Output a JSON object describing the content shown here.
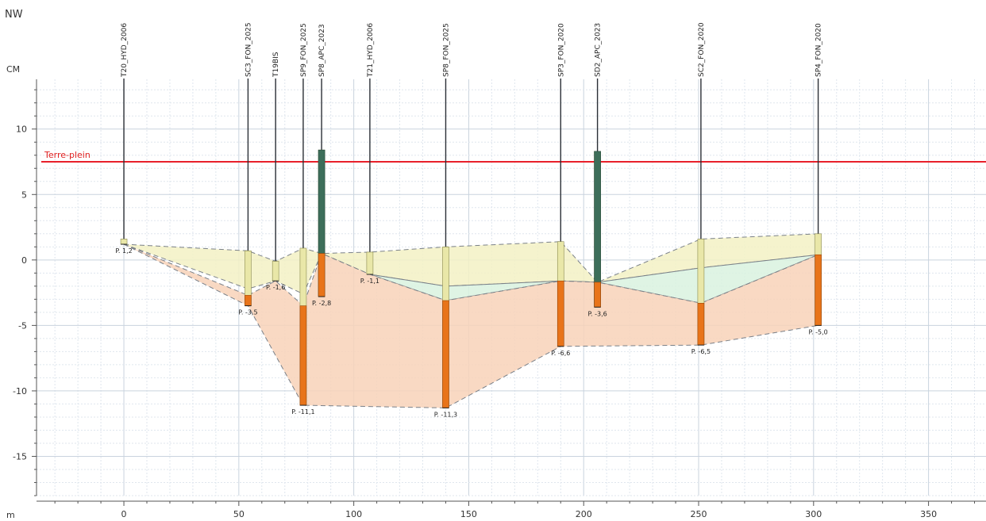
{
  "corner_label": "NW",
  "chart_data": {
    "type": "line",
    "ylabel": "CM",
    "xlabel": "m",
    "xlim": [
      -38,
      375
    ],
    "ylim": [
      -18,
      13.8
    ],
    "xticks": [
      0,
      50,
      100,
      150,
      200,
      250,
      300,
      350
    ],
    "yticks": [
      10,
      5,
      0,
      -5,
      -10,
      -15
    ],
    "ytick_labels": [
      "10",
      "5",
      "0",
      "-5",
      "-10",
      "-15"
    ],
    "reference_line": {
      "name": "Terre-plein",
      "y": 7.5,
      "color": "#e8202a"
    },
    "boreholes": [
      {
        "name": "T20_HYD_2006",
        "x": 0,
        "top": 1.6,
        "bottom": 1.2,
        "depth_label": "P. 1,2",
        "orange_top": null,
        "green_top": null
      },
      {
        "name": "SC3_FON_2025",
        "x": 54,
        "top": 0.7,
        "bottom": -3.5,
        "depth_label": "P. -3,5",
        "orange_top": -2.7,
        "green_top": null
      },
      {
        "name": "T19BIS",
        "x": 66,
        "top": -0.1,
        "bottom": -1.6,
        "depth_label": "P. -1,6",
        "orange_top": null,
        "green_top": null
      },
      {
        "name": "SP9_FON_2025",
        "x": 78,
        "top": 0.9,
        "bottom": -11.1,
        "depth_label": "P. -11,1",
        "orange_top": -3.5,
        "green_top": null
      },
      {
        "name": "SP8_APC_2023",
        "x": 86,
        "top": 8.4,
        "bottom": -2.8,
        "depth_label": "P. -2,8",
        "orange_top": 0.5,
        "green_top": 8.4
      },
      {
        "name": "T21_HYD_2006",
        "x": 107,
        "top": 0.6,
        "bottom": -1.1,
        "depth_label": "P. -1,1",
        "orange_top": null,
        "green_top": null
      },
      {
        "name": "SP8_FON_2025",
        "x": 140,
        "top": 1.0,
        "bottom": -11.3,
        "depth_label": "P. -11,3",
        "orange_top": -3.1,
        "green_top": null
      },
      {
        "name": "SP3_FON_2020",
        "x": 190,
        "top": 1.4,
        "bottom": -6.6,
        "depth_label": "P. -6,6",
        "orange_top": -1.6,
        "green_top": null
      },
      {
        "name": "SD2_APC_2023",
        "x": 206,
        "top": 8.3,
        "bottom": -3.6,
        "depth_label": "P. -3,6",
        "orange_top": -1.7,
        "green_top": 8.3
      },
      {
        "name": "SC2_FON_2020",
        "x": 251,
        "top": 1.6,
        "bottom": -6.5,
        "depth_label": "P. -6,5",
        "orange_top": -3.3,
        "green_top": null
      },
      {
        "name": "SP4_FON_2020",
        "x": 302,
        "top": 2.0,
        "bottom": -5.0,
        "depth_label": "P. -5,0",
        "orange_top": 0.4,
        "green_top": null
      }
    ],
    "layers": [
      {
        "name": "surface",
        "color": "#f3f1c4",
        "top": [
          [
            0,
            1.2
          ],
          [
            54,
            0.7
          ],
          [
            66,
            -0.1
          ],
          [
            78,
            0.9
          ],
          [
            86,
            0.5
          ],
          [
            107,
            0.6
          ],
          [
            140,
            1.0
          ],
          [
            190,
            1.4
          ],
          [
            206,
            -1.7
          ],
          [
            251,
            1.6
          ],
          [
            302,
            2.0
          ]
        ],
        "bottom": [
          [
            0,
            1.2
          ],
          [
            54,
            -2.2
          ],
          [
            66,
            -1.6
          ],
          [
            78,
            -2.6
          ],
          [
            86,
            0.5
          ],
          [
            107,
            -1.1
          ],
          [
            140,
            -2.0
          ],
          [
            190,
            -1.6
          ],
          [
            206,
            -1.7
          ],
          [
            251,
            -0.6
          ],
          [
            302,
            0.4
          ]
        ]
      },
      {
        "name": "intermediate",
        "color": "#d9f2df",
        "top": [
          [
            107,
            -1.1
          ],
          [
            140,
            -2.0
          ],
          [
            190,
            -1.6
          ],
          [
            206,
            -1.7
          ],
          [
            251,
            -0.6
          ],
          [
            302,
            0.4
          ]
        ],
        "bottom": [
          [
            107,
            -1.1
          ],
          [
            140,
            -3.1
          ],
          [
            190,
            -1.6
          ],
          [
            206,
            -1.7
          ],
          [
            251,
            -3.3
          ],
          [
            302,
            0.4
          ]
        ]
      },
      {
        "name": "deep",
        "color": "#f8d2b8",
        "top": [
          [
            0,
            1.2
          ],
          [
            54,
            -2.7
          ],
          [
            66,
            -1.6
          ],
          [
            78,
            -3.5
          ],
          [
            86,
            0.5
          ],
          [
            107,
            -1.1
          ],
          [
            140,
            -3.1
          ],
          [
            190,
            -1.6
          ],
          [
            206,
            -1.7
          ],
          [
            251,
            -3.3
          ],
          [
            302,
            0.4
          ]
        ],
        "bottom": [
          [
            0,
            1.2
          ],
          [
            54,
            -3.5
          ],
          [
            78,
            -11.1
          ],
          [
            140,
            -11.3
          ],
          [
            190,
            -6.6
          ],
          [
            251,
            -6.5
          ],
          [
            302,
            -5.0
          ]
        ]
      }
    ]
  }
}
